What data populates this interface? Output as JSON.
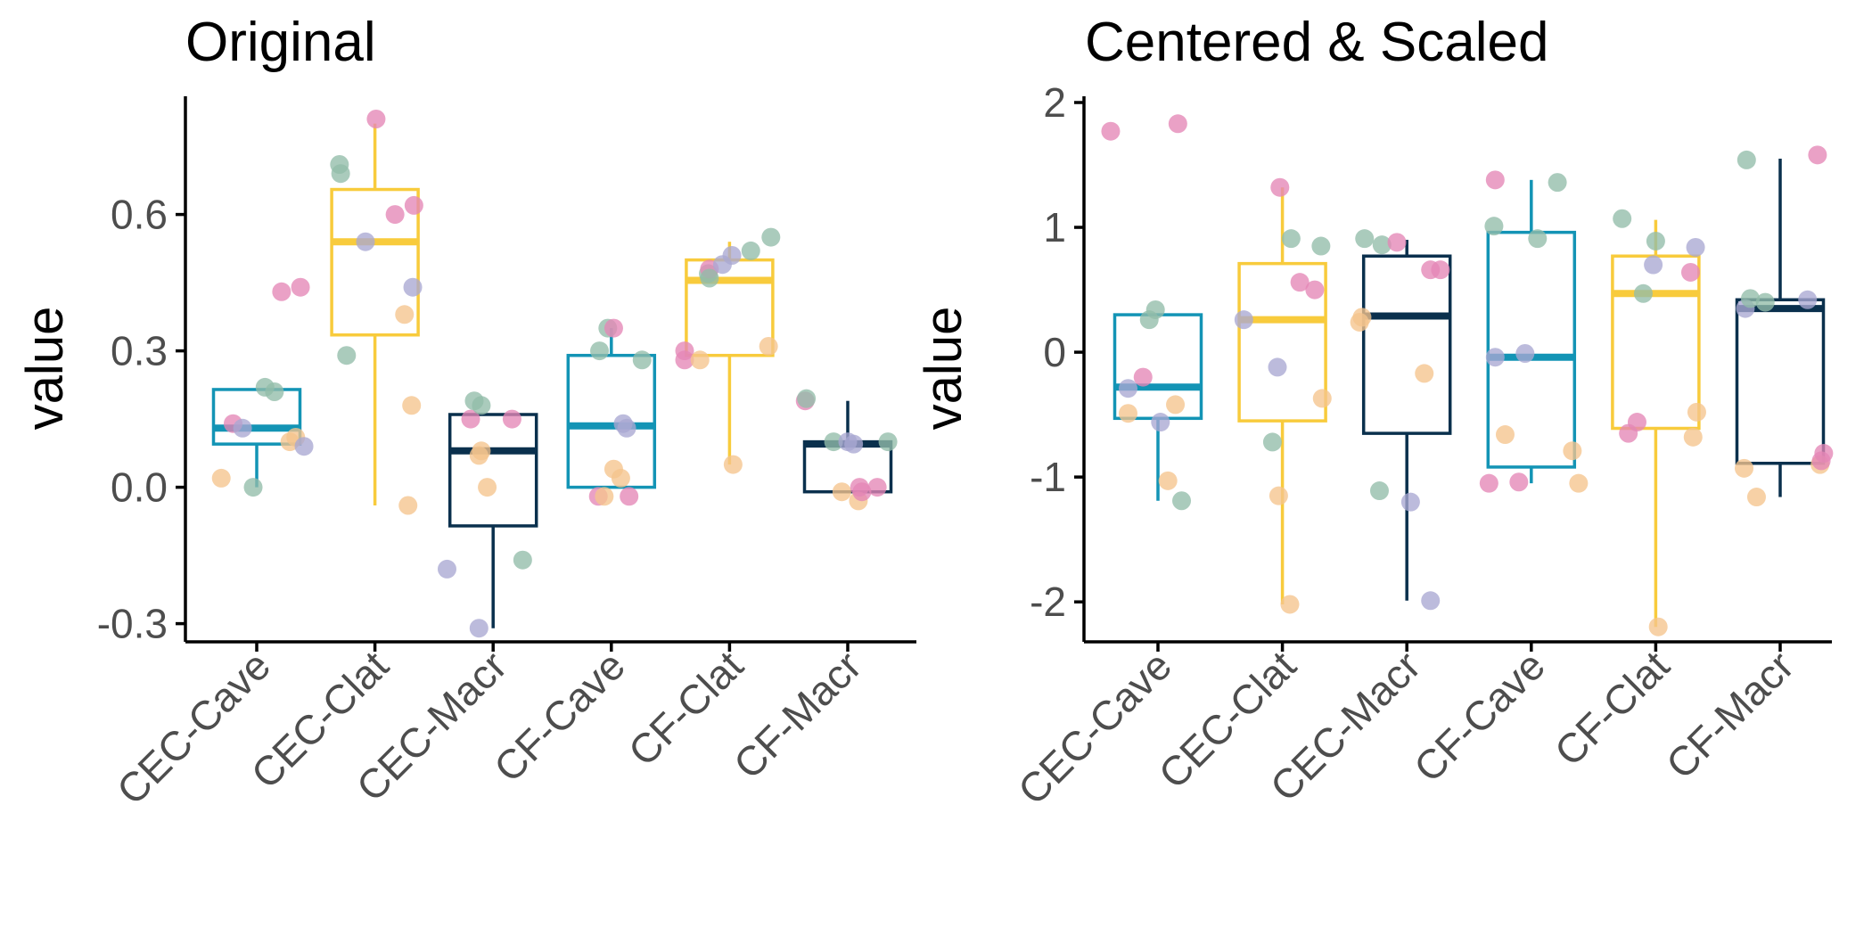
{
  "palette": {
    "box": {
      "Cave": "#1394b5",
      "Clat": "#f8cb3c",
      "Macr": "#0a304d"
    },
    "points": [
      "#92bca9",
      "#e486b6",
      "#a9a8d2",
      "#f5c48d"
    ]
  },
  "chart_data": [
    {
      "type": "boxplot",
      "title": "Original",
      "xlabel": "",
      "ylabel": "value",
      "ylim": [
        -0.34,
        0.86
      ],
      "yticks": [
        -0.3,
        0.0,
        0.3,
        0.6
      ],
      "ytick_labels": [
        "-0.3",
        "0.0",
        "0.3",
        "0.6"
      ],
      "grid": false,
      "categories": [
        "CEC-Cave",
        "CEC-Clat",
        "CEC-Macr",
        "CF-Cave",
        "CF-Clat",
        "CF-Macr"
      ],
      "groups": [
        {
          "category": "CEC-Cave",
          "box": "Cave",
          "stats": {
            "min": 0.0,
            "q1": 0.095,
            "median": 0.13,
            "q3": 0.215,
            "max": 0.215
          },
          "points": [
            {
              "dx": -0.3,
              "y": 0.02,
              "c": 3
            },
            {
              "dx": -0.2,
              "y": 0.14,
              "c": 1
            },
            {
              "dx": -0.12,
              "y": 0.13,
              "c": 2
            },
            {
              "dx": -0.03,
              "y": 0.0,
              "c": 0
            },
            {
              "dx": 0.07,
              "y": 0.22,
              "c": 0
            },
            {
              "dx": 0.15,
              "y": 0.21,
              "c": 0
            },
            {
              "dx": 0.21,
              "y": 0.43,
              "c": 1
            },
            {
              "dx": 0.28,
              "y": 0.1,
              "c": 3
            },
            {
              "dx": 0.33,
              "y": 0.11,
              "c": 3
            },
            {
              "dx": 0.37,
              "y": 0.44,
              "c": 1
            },
            {
              "dx": 0.4,
              "y": 0.09,
              "c": 2
            }
          ]
        },
        {
          "category": "CEC-Clat",
          "box": "Clat",
          "stats": {
            "min": -0.04,
            "q1": 0.335,
            "median": 0.54,
            "q3": 0.655,
            "max": 0.8
          },
          "points": [
            {
              "dx": -0.3,
              "y": 0.71,
              "c": 0
            },
            {
              "dx": -0.29,
              "y": 0.69,
              "c": 0
            },
            {
              "dx": -0.24,
              "y": 0.29,
              "c": 0
            },
            {
              "dx": -0.08,
              "y": 0.54,
              "c": 2
            },
            {
              "dx": 0.01,
              "y": 0.81,
              "c": 1
            },
            {
              "dx": 0.17,
              "y": 0.6,
              "c": 1
            },
            {
              "dx": 0.25,
              "y": 0.38,
              "c": 3
            },
            {
              "dx": 0.28,
              "y": -0.04,
              "c": 3
            },
            {
              "dx": 0.31,
              "y": 0.18,
              "c": 3
            },
            {
              "dx": 0.32,
              "y": 0.44,
              "c": 2
            },
            {
              "dx": 0.33,
              "y": 0.62,
              "c": 1
            }
          ]
        },
        {
          "category": "CEC-Macr",
          "box": "Macr",
          "stats": {
            "min": -0.31,
            "q1": -0.085,
            "median": 0.08,
            "q3": 0.16,
            "max": 0.16
          },
          "points": [
            {
              "dx": -0.39,
              "y": -0.18,
              "c": 2
            },
            {
              "dx": -0.19,
              "y": 0.15,
              "c": 1
            },
            {
              "dx": -0.16,
              "y": 0.19,
              "c": 0
            },
            {
              "dx": -0.1,
              "y": 0.18,
              "c": 0
            },
            {
              "dx": -0.12,
              "y": 0.07,
              "c": 3
            },
            {
              "dx": -0.1,
              "y": 0.08,
              "c": 3
            },
            {
              "dx": -0.12,
              "y": -0.31,
              "c": 2
            },
            {
              "dx": -0.05,
              "y": 0.0,
              "c": 3
            },
            {
              "dx": 0.16,
              "y": 0.15,
              "c": 1
            },
            {
              "dx": 0.25,
              "y": -0.16,
              "c": 0
            }
          ]
        },
        {
          "category": "CF-Cave",
          "box": "Cave",
          "stats": {
            "min": 0.0,
            "q1": 0.0,
            "median": 0.135,
            "q3": 0.29,
            "max": 0.35
          },
          "points": [
            {
              "dx": -0.11,
              "y": -0.02,
              "c": 1
            },
            {
              "dx": -0.06,
              "y": -0.02,
              "c": 3
            },
            {
              "dx": -0.1,
              "y": 0.3,
              "c": 0
            },
            {
              "dx": -0.03,
              "y": 0.35,
              "c": 0
            },
            {
              "dx": 0.02,
              "y": 0.35,
              "c": 1
            },
            {
              "dx": 0.02,
              "y": 0.04,
              "c": 3
            },
            {
              "dx": 0.08,
              "y": 0.02,
              "c": 3
            },
            {
              "dx": 0.1,
              "y": 0.14,
              "c": 2
            },
            {
              "dx": 0.13,
              "y": 0.13,
              "c": 2
            },
            {
              "dx": 0.15,
              "y": -0.02,
              "c": 1
            },
            {
              "dx": 0.26,
              "y": 0.28,
              "c": 0
            }
          ]
        },
        {
          "category": "CF-Clat",
          "box": "Clat",
          "stats": {
            "min": 0.05,
            "q1": 0.29,
            "median": 0.455,
            "q3": 0.5,
            "max": 0.54
          },
          "points": [
            {
              "dx": -0.38,
              "y": 0.3,
              "c": 1
            },
            {
              "dx": -0.38,
              "y": 0.28,
              "c": 1
            },
            {
              "dx": -0.25,
              "y": 0.28,
              "c": 3
            },
            {
              "dx": -0.18,
              "y": 0.47,
              "c": 0
            },
            {
              "dx": -0.17,
              "y": 0.48,
              "c": 1
            },
            {
              "dx": -0.17,
              "y": 0.46,
              "c": 0
            },
            {
              "dx": -0.06,
              "y": 0.49,
              "c": 2
            },
            {
              "dx": 0.02,
              "y": 0.51,
              "c": 2
            },
            {
              "dx": 0.03,
              "y": 0.05,
              "c": 3
            },
            {
              "dx": 0.18,
              "y": 0.52,
              "c": 0
            },
            {
              "dx": 0.33,
              "y": 0.31,
              "c": 3
            },
            {
              "dx": 0.35,
              "y": 0.55,
              "c": 0
            }
          ]
        },
        {
          "category": "CF-Macr",
          "box": "Macr",
          "stats": {
            "min": -0.01,
            "q1": -0.01,
            "median": 0.095,
            "q3": 0.1,
            "max": 0.19
          },
          "points": [
            {
              "dx": -0.36,
              "y": 0.19,
              "c": 1
            },
            {
              "dx": -0.35,
              "y": 0.195,
              "c": 0
            },
            {
              "dx": -0.12,
              "y": 0.1,
              "c": 0
            },
            {
              "dx": -0.05,
              "y": -0.01,
              "c": 3
            },
            {
              "dx": 0.0,
              "y": 0.1,
              "c": 2
            },
            {
              "dx": 0.05,
              "y": 0.095,
              "c": 2
            },
            {
              "dx": 0.09,
              "y": -0.03,
              "c": 3
            },
            {
              "dx": 0.1,
              "y": 0.0,
              "c": 1
            },
            {
              "dx": 0.12,
              "y": -0.01,
              "c": 1
            },
            {
              "dx": 0.25,
              "y": 0.0,
              "c": 1
            },
            {
              "dx": 0.34,
              "y": 0.1,
              "c": 0
            }
          ]
        }
      ]
    },
    {
      "type": "boxplot",
      "title": "Centered & Scaled",
      "xlabel": "",
      "ylabel": "value",
      "ylim": [
        -2.32,
        2.05
      ],
      "yticks": [
        -2,
        -1,
        0,
        1,
        2
      ],
      "ytick_labels": [
        "-2",
        "-1",
        "0",
        "1",
        "2"
      ],
      "grid": false,
      "categories": [
        "CEC-Cave",
        "CEC-Clat",
        "CEC-Macr",
        "CF-Cave",
        "CF-Clat",
        "CF-Macr"
      ],
      "groups": [
        {
          "category": "CEC-Cave",
          "box": "Cave",
          "stats": {
            "min": -1.19,
            "q1": -0.53,
            "median": -0.28,
            "q3": 0.3,
            "max": 0.3
          },
          "points": [
            {
              "dx": -0.38,
              "y": 1.77,
              "c": 1
            },
            {
              "dx": -0.24,
              "y": -0.29,
              "c": 2
            },
            {
              "dx": -0.24,
              "y": -0.49,
              "c": 3
            },
            {
              "dx": -0.12,
              "y": -0.2,
              "c": 1
            },
            {
              "dx": -0.07,
              "y": 0.26,
              "c": 0
            },
            {
              "dx": -0.02,
              "y": 0.34,
              "c": 0
            },
            {
              "dx": 0.02,
              "y": -0.56,
              "c": 2
            },
            {
              "dx": 0.08,
              "y": -1.03,
              "c": 3
            },
            {
              "dx": 0.14,
              "y": -0.42,
              "c": 3
            },
            {
              "dx": 0.16,
              "y": 1.83,
              "c": 1
            },
            {
              "dx": 0.19,
              "y": -1.19,
              "c": 0
            }
          ]
        },
        {
          "category": "CEC-Clat",
          "box": "Clat",
          "stats": {
            "min": -2.02,
            "q1": -0.55,
            "median": 0.26,
            "q3": 0.71,
            "max": 1.32
          },
          "points": [
            {
              "dx": -0.31,
              "y": 0.26,
              "c": 2
            },
            {
              "dx": -0.08,
              "y": -0.72,
              "c": 0
            },
            {
              "dx": -0.04,
              "y": -0.12,
              "c": 2
            },
            {
              "dx": -0.02,
              "y": 1.32,
              "c": 1
            },
            {
              "dx": -0.03,
              "y": -1.15,
              "c": 3
            },
            {
              "dx": 0.06,
              "y": -2.02,
              "c": 3
            },
            {
              "dx": 0.07,
              "y": 0.91,
              "c": 0
            },
            {
              "dx": 0.14,
              "y": 0.56,
              "c": 1
            },
            {
              "dx": 0.26,
              "y": 0.5,
              "c": 1
            },
            {
              "dx": 0.31,
              "y": 0.85,
              "c": 0
            },
            {
              "dx": 0.32,
              "y": -0.37,
              "c": 3
            }
          ]
        },
        {
          "category": "CEC-Macr",
          "box": "Macr",
          "stats": {
            "min": -1.99,
            "q1": -0.65,
            "median": 0.29,
            "q3": 0.77,
            "max": 0.9
          },
          "points": [
            {
              "dx": -0.38,
              "y": 0.24,
              "c": 3
            },
            {
              "dx": -0.36,
              "y": 0.28,
              "c": 3
            },
            {
              "dx": -0.34,
              "y": 0.91,
              "c": 0
            },
            {
              "dx": -0.2,
              "y": 0.86,
              "c": 0
            },
            {
              "dx": -0.22,
              "y": -1.11,
              "c": 0
            },
            {
              "dx": -0.08,
              "y": 0.88,
              "c": 1
            },
            {
              "dx": 0.03,
              "y": -1.2,
              "c": 2
            },
            {
              "dx": 0.14,
              "y": -0.17,
              "c": 3
            },
            {
              "dx": 0.19,
              "y": -1.99,
              "c": 2
            },
            {
              "dx": 0.19,
              "y": 0.66,
              "c": 1
            },
            {
              "dx": 0.27,
              "y": 0.66,
              "c": 1
            }
          ]
        },
        {
          "category": "CF-Cave",
          "box": "Cave",
          "stats": {
            "min": -1.05,
            "q1": -0.92,
            "median": -0.04,
            "q3": 0.96,
            "max": 1.38
          },
          "points": [
            {
              "dx": -0.34,
              "y": -1.05,
              "c": 1
            },
            {
              "dx": -0.3,
              "y": 1.01,
              "c": 0
            },
            {
              "dx": -0.29,
              "y": 1.38,
              "c": 1
            },
            {
              "dx": -0.29,
              "y": -0.04,
              "c": 2
            },
            {
              "dx": -0.21,
              "y": -0.66,
              "c": 3
            },
            {
              "dx": -0.1,
              "y": -1.04,
              "c": 1
            },
            {
              "dx": -0.05,
              "y": -0.01,
              "c": 2
            },
            {
              "dx": 0.05,
              "y": 0.91,
              "c": 0
            },
            {
              "dx": 0.21,
              "y": 1.36,
              "c": 0
            },
            {
              "dx": 0.33,
              "y": -0.79,
              "c": 3
            },
            {
              "dx": 0.38,
              "y": -1.05,
              "c": 3
            }
          ]
        },
        {
          "category": "CF-Clat",
          "box": "Clat",
          "stats": {
            "min": -2.2,
            "q1": -0.61,
            "median": 0.47,
            "q3": 0.77,
            "max": 1.06
          },
          "points": [
            {
              "dx": -0.27,
              "y": 1.07,
              "c": 0
            },
            {
              "dx": -0.22,
              "y": -0.65,
              "c": 1
            },
            {
              "dx": -0.15,
              "y": -0.56,
              "c": 1
            },
            {
              "dx": -0.1,
              "y": 0.47,
              "c": 0
            },
            {
              "dx": -0.02,
              "y": 0.7,
              "c": 2
            },
            {
              "dx": 0.0,
              "y": 0.89,
              "c": 0
            },
            {
              "dx": 0.02,
              "y": -2.2,
              "c": 3
            },
            {
              "dx": 0.28,
              "y": 0.64,
              "c": 1
            },
            {
              "dx": 0.32,
              "y": 0.84,
              "c": 2
            },
            {
              "dx": 0.3,
              "y": -0.68,
              "c": 3
            },
            {
              "dx": 0.33,
              "y": -0.48,
              "c": 3
            }
          ]
        },
        {
          "category": "CF-Macr",
          "box": "Macr",
          "stats": {
            "min": -1.16,
            "q1": -0.89,
            "median": 0.35,
            "q3": 0.42,
            "max": 1.55
          },
          "points": [
            {
              "dx": -0.29,
              "y": -0.93,
              "c": 3
            },
            {
              "dx": -0.28,
              "y": 0.35,
              "c": 2
            },
            {
              "dx": -0.27,
              "y": 1.54,
              "c": 0
            },
            {
              "dx": -0.24,
              "y": 0.43,
              "c": 0
            },
            {
              "dx": -0.19,
              "y": -1.16,
              "c": 3
            },
            {
              "dx": -0.12,
              "y": 0.4,
              "c": 0
            },
            {
              "dx": 0.22,
              "y": 0.42,
              "c": 2
            },
            {
              "dx": 0.3,
              "y": 1.58,
              "c": 1
            },
            {
              "dx": 0.32,
              "y": -0.9,
              "c": 3
            },
            {
              "dx": 0.33,
              "y": -0.87,
              "c": 1
            },
            {
              "dx": 0.35,
              "y": -0.81,
              "c": 1
            }
          ]
        }
      ]
    }
  ]
}
